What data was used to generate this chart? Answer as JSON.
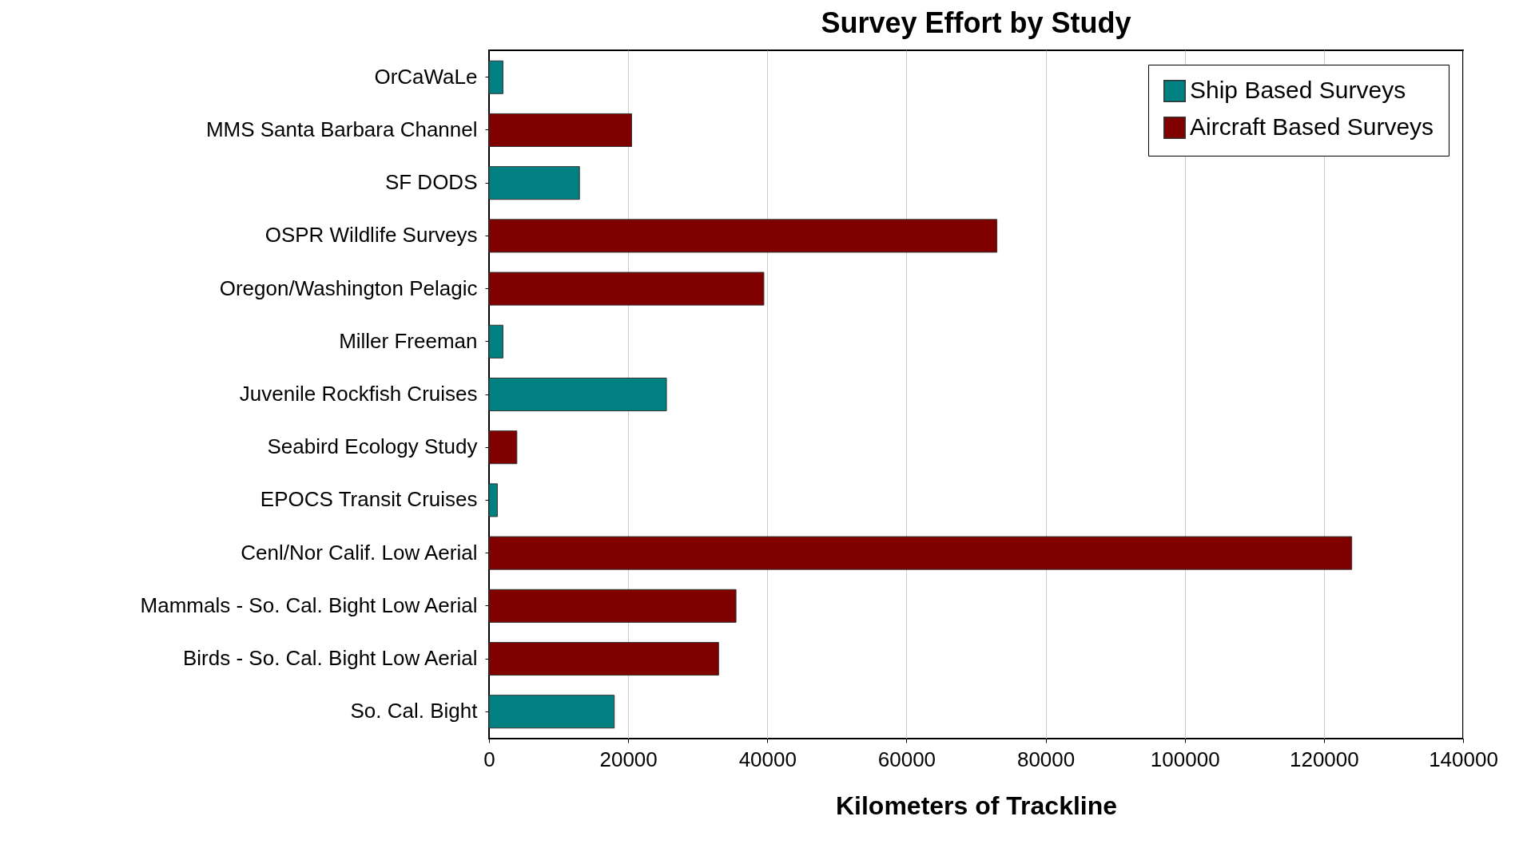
{
  "chart_data": {
    "type": "bar",
    "orientation": "horizontal",
    "title": "Survey Effort by Study",
    "xlabel": "Kilometers of Trackline",
    "categories": [
      "OrCaWaLe",
      "MMS Santa Barbara Channel",
      "SF DODS",
      "OSPR Wildlife Surveys",
      "Oregon/Washington Pelagic",
      "Miller Freeman",
      "Juvenile Rockfish Cruises",
      "Seabird Ecology Study",
      "EPOCS Transit Cruises",
      "Cenl/Nor Calif. Low Aerial",
      "Mammals - So. Cal. Bight Low Aerial",
      "Birds - So. Cal. Bight Low Aerial",
      "So. Cal. Bight"
    ],
    "series": [
      {
        "name": "Ship Based Surveys",
        "color": "#008080",
        "values": [
          2000,
          null,
          13000,
          null,
          null,
          2000,
          25500,
          null,
          1200,
          null,
          null,
          null,
          18000
        ]
      },
      {
        "name": "Aircraft Based Surveys",
        "color": "#800000",
        "values": [
          null,
          20500,
          null,
          73000,
          39500,
          null,
          null,
          4000,
          null,
          124000,
          35500,
          33000,
          null
        ]
      }
    ],
    "xlim": [
      0,
      140000
    ],
    "xticks": [
      0,
      20000,
      40000,
      60000,
      80000,
      100000,
      120000,
      140000
    ],
    "grid": "x",
    "legend": "top right"
  }
}
